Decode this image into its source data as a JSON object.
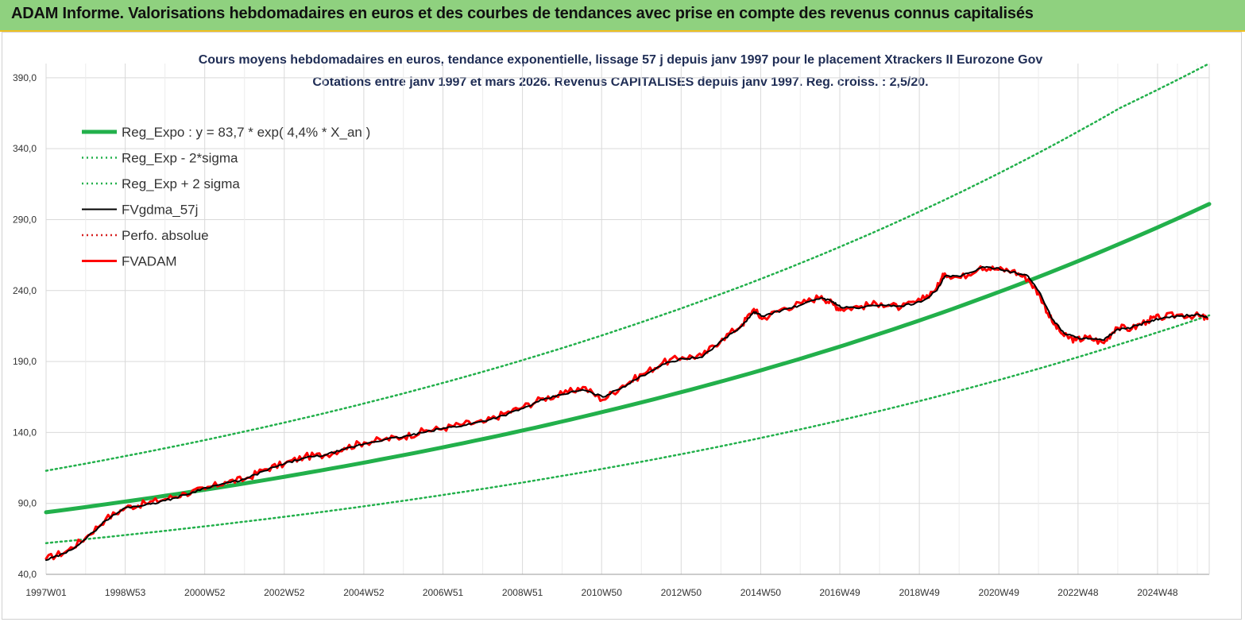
{
  "header": {
    "title": "ADAM Informe. Valorisations hebdomadaires en euros et des courbes de tendances avec prise en compte des revenus connus capitalisés",
    "colors": {
      "banner": "#8fd17f",
      "banner_border": "#f0c020"
    }
  },
  "chart_data": {
    "type": "line",
    "title_line1": "Cours moyens hebdomadaires en euros, tendance exponentielle, lissage 57 j depuis janv 1997 pour le placement Xtrackers II Eurozone Gov",
    "title_line2": "Cotations entre janv 1997 et mars 2026. Revenus CAPITALISES depuis janv 1997. Reg. croiss. : 2,5/20.",
    "xlabel": "",
    "ylabel": "",
    "ylim": [
      40,
      400
    ],
    "xlim": [
      1997.0,
      2026.25
    ],
    "y_ticks": [
      "40,0",
      "90,0",
      "140,0",
      "190,0",
      "240,0",
      "290,0",
      "340,0",
      "390,0"
    ],
    "x_ticks": [
      "1997W01",
      "1998W53",
      "2000W52",
      "2002W52",
      "2004W52",
      "2006W51",
      "2008W51",
      "2010W50",
      "2012W50",
      "2014W50",
      "2016W49",
      "2018W49",
      "2020W49",
      "2022W48",
      "2024W48"
    ],
    "grid": true,
    "legend_position": "top-left",
    "legend": [
      "Reg_Expo : y = 83,7 * exp( 4,4% *  X_an )",
      "Reg_Exp - 2*sigma",
      "Reg_Exp + 2 sigma",
      "FVgdma_57j",
      "Perfo. absolue",
      "FVADAM"
    ],
    "series": [
      {
        "name": "Reg_Expo : y = 83,7 * exp( 4,4% *  X_an )",
        "style": "solid-thick",
        "color": "#22b04b",
        "x": [
          1997,
          2000,
          2003,
          2006,
          2009,
          2012,
          2015,
          2018,
          2021,
          2024,
          2026.25
        ],
        "values": [
          83.7,
          95.4,
          108.8,
          124.1,
          141.5,
          161.4,
          184.0,
          209.9,
          239.4,
          273.0,
          301.0
        ]
      },
      {
        "name": "Reg_Exp - 2*sigma",
        "style": "dotted",
        "color": "#22b04b",
        "x": [
          1997,
          2000,
          2003,
          2006,
          2009,
          2012,
          2015,
          2018,
          2021,
          2024,
          2026.25
        ],
        "values": [
          62.0,
          70.7,
          80.6,
          91.9,
          104.8,
          119.5,
          136.3,
          155.4,
          177.3,
          202.2,
          222.5
        ]
      },
      {
        "name": "Reg_Exp + 2 sigma",
        "style": "dotted",
        "color": "#22b04b",
        "x": [
          1997,
          2000,
          2003,
          2006,
          2009,
          2012,
          2015,
          2018,
          2021,
          2024,
          2026.25
        ],
        "values": [
          113.0,
          128.9,
          147.0,
          167.6,
          191.1,
          218.0,
          248.5,
          283.4,
          323.2,
          368.6,
          400.0
        ]
      },
      {
        "name": "FVgdma_57j",
        "style": "solid",
        "color": "#000000",
        "x": [
          1997.0,
          1997.5,
          1998.0,
          1998.5,
          1999.0,
          1999.5,
          2000.0,
          2000.5,
          2001.0,
          2001.5,
          2002.0,
          2002.5,
          2003.0,
          2003.5,
          2004.0,
          2004.5,
          2005.0,
          2005.5,
          2006.0,
          2006.5,
          2007.0,
          2007.5,
          2008.0,
          2008.5,
          2009.0,
          2009.5,
          2010.0,
          2010.5,
          2011.0,
          2011.5,
          2012.0,
          2012.5,
          2013.0,
          2013.5,
          2014.0,
          2014.5,
          2014.8,
          2015.0,
          2015.5,
          2016.0,
          2016.5,
          2016.8,
          2017.0,
          2017.5,
          2018.0,
          2018.5,
          2019.0,
          2019.4,
          2019.6,
          2020.0,
          2020.5,
          2020.9,
          2021.3,
          2021.7,
          2022.0,
          2022.3,
          2022.6,
          2022.9,
          2023.2,
          2023.6,
          2023.9,
          2024.3,
          2024.7,
          2025.0,
          2025.5,
          2026.0,
          2026.2
        ],
        "values": [
          50,
          55,
          65,
          78,
          87,
          89,
          92,
          96,
          101,
          104,
          107,
          113,
          118,
          122,
          124,
          128,
          132,
          135,
          137,
          140,
          143,
          145,
          148,
          152,
          157,
          163,
          167,
          170,
          165,
          172,
          180,
          188,
          192,
          193,
          205,
          215,
          225,
          222,
          226,
          230,
          235,
          232,
          228,
          228,
          230,
          229,
          232,
          240,
          250,
          250,
          256,
          256,
          253,
          250,
          238,
          220,
          210,
          207,
          206,
          205,
          212,
          214,
          218,
          220,
          222,
          223,
          221
        ]
      },
      {
        "name": "Perfo. absolue",
        "style": "dotted",
        "color": "#d62020",
        "x": [],
        "values": []
      },
      {
        "name": "FVADAM",
        "style": "solid-thick",
        "color": "#ff0000",
        "x": [
          1997.0,
          1997.5,
          1998.0,
          1998.5,
          1999.0,
          1999.5,
          2000.0,
          2000.5,
          2001.0,
          2001.5,
          2002.0,
          2002.5,
          2003.0,
          2003.5,
          2004.0,
          2004.5,
          2005.0,
          2005.5,
          2006.0,
          2006.5,
          2007.0,
          2007.5,
          2008.0,
          2008.5,
          2009.0,
          2009.5,
          2010.0,
          2010.5,
          2011.0,
          2011.5,
          2012.0,
          2012.5,
          2013.0,
          2013.5,
          2014.0,
          2014.5,
          2014.8,
          2015.0,
          2015.5,
          2016.0,
          2016.5,
          2016.8,
          2017.0,
          2017.5,
          2018.0,
          2018.5,
          2019.0,
          2019.4,
          2019.6,
          2020.0,
          2020.5,
          2020.9,
          2021.3,
          2021.7,
          2022.0,
          2022.3,
          2022.6,
          2022.9,
          2023.2,
          2023.6,
          2023.9,
          2024.3,
          2024.7,
          2025.0,
          2025.5,
          2026.0,
          2026.2
        ],
        "values": [
          51,
          56,
          66,
          79,
          87,
          90,
          93,
          97,
          100,
          105,
          107,
          114,
          118,
          123,
          124,
          129,
          133,
          135,
          137,
          141,
          143,
          146,
          147,
          153,
          158,
          164,
          167,
          172,
          163,
          173,
          181,
          189,
          193,
          194,
          206,
          216,
          227,
          220,
          227,
          231,
          236,
          230,
          227,
          229,
          231,
          228,
          233,
          242,
          252,
          249,
          257,
          255,
          254,
          248,
          236,
          218,
          208,
          205,
          207,
          203,
          214,
          213,
          219,
          221,
          223,
          222,
          220
        ]
      }
    ]
  }
}
